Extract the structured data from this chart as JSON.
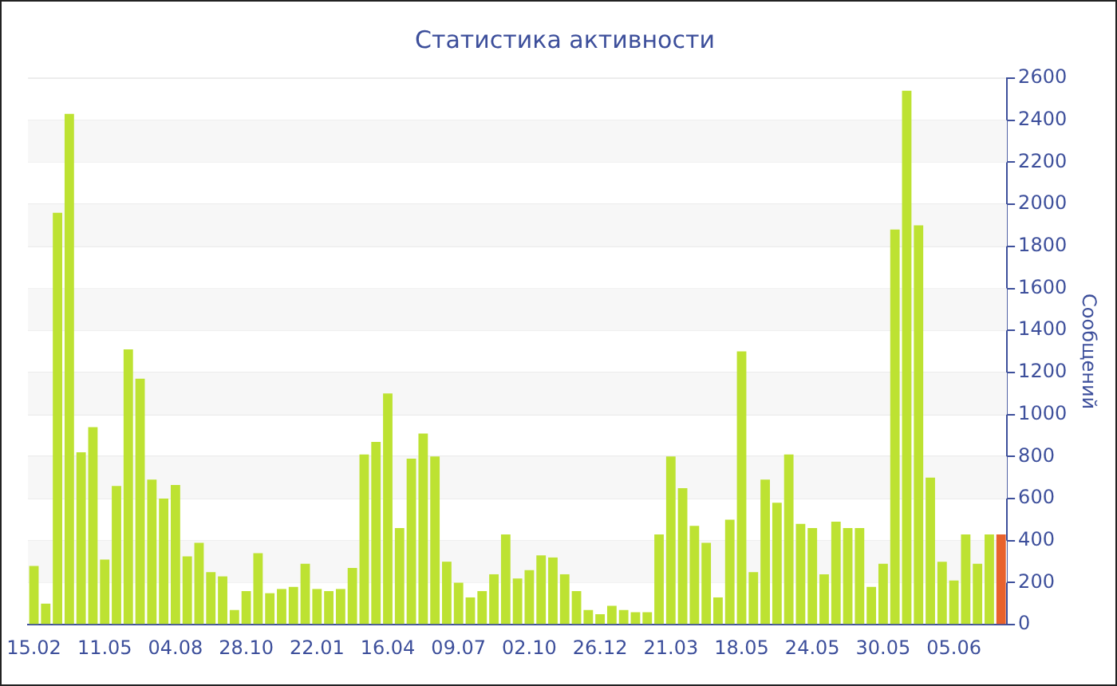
{
  "chart_data": {
    "type": "bar",
    "title": "Статистика активности",
    "ylabel": "Сообщений",
    "categories": [
      "15.02",
      null,
      null,
      null,
      null,
      null,
      "11.05",
      null,
      null,
      null,
      null,
      null,
      "04.08",
      null,
      null,
      null,
      null,
      null,
      "28.10",
      null,
      null,
      null,
      null,
      null,
      "22.01",
      null,
      null,
      null,
      null,
      null,
      "16.04",
      null,
      null,
      null,
      null,
      null,
      "09.07",
      null,
      null,
      null,
      null,
      null,
      "02.10",
      null,
      null,
      null,
      null,
      null,
      "26.12",
      null,
      null,
      null,
      null,
      null,
      "21.03",
      null,
      null,
      null,
      null,
      null,
      "18.05",
      null,
      null,
      null,
      null,
      null,
      "24.05",
      null,
      null,
      null,
      null,
      null,
      "30.05",
      null,
      null,
      null,
      null,
      null,
      "05.06",
      null,
      null,
      null,
      null
    ],
    "values": [
      280,
      100,
      1960,
      2430,
      820,
      940,
      310,
      660,
      1310,
      1170,
      690,
      600,
      665,
      325,
      390,
      250,
      230,
      70,
      160,
      340,
      150,
      170,
      180,
      290,
      170,
      160,
      170,
      270,
      810,
      870,
      1100,
      460,
      790,
      910,
      800,
      300,
      200,
      130,
      160,
      240,
      430,
      220,
      260,
      330,
      320,
      240,
      160,
      70,
      50,
      90,
      70,
      60,
      60,
      430,
      800,
      650,
      470,
      390,
      130,
      500,
      1300,
      250,
      690,
      580,
      810,
      480,
      460,
      240,
      490,
      460,
      460,
      180,
      290,
      1880,
      2540,
      1900,
      700,
      300,
      210,
      430,
      290,
      430,
      430
    ],
    "colors": [
      "#bde232",
      "#bde232",
      "#bde232",
      "#bde232",
      "#bde232",
      "#bde232",
      "#bde232",
      "#bde232",
      "#bde232",
      "#bde232",
      "#bde232",
      "#bde232",
      "#bde232",
      "#bde232",
      "#bde232",
      "#bde232",
      "#bde232",
      "#bde232",
      "#bde232",
      "#bde232",
      "#bde232",
      "#bde232",
      "#bde232",
      "#bde232",
      "#bde232",
      "#bde232",
      "#bde232",
      "#bde232",
      "#bde232",
      "#bde232",
      "#bde232",
      "#bde232",
      "#bde232",
      "#bde232",
      "#bde232",
      "#bde232",
      "#bde232",
      "#bde232",
      "#bde232",
      "#bde232",
      "#bde232",
      "#bde232",
      "#bde232",
      "#bde232",
      "#bde232",
      "#bde232",
      "#bde232",
      "#bde232",
      "#bde232",
      "#bde232",
      "#bde232",
      "#bde232",
      "#bde232",
      "#bde232",
      "#bde232",
      "#bde232",
      "#bde232",
      "#bde232",
      "#bde232",
      "#bde232",
      "#bde232",
      "#bde232",
      "#bde232",
      "#bde232",
      "#bde232",
      "#bde232",
      "#bde232",
      "#bde232",
      "#bde232",
      "#bde232",
      "#bde232",
      "#bde232",
      "#bde232",
      "#bde232",
      "#bde232",
      "#bde232",
      "#bde232",
      "#bde232",
      "#bde232",
      "#bde232",
      "#bde232",
      "#bde232",
      "#e8622c"
    ],
    "ylim": [
      0,
      2600
    ],
    "yticks": [
      0,
      200,
      400,
      600,
      800,
      1000,
      1200,
      1400,
      1600,
      1800,
      2000,
      2200,
      2400,
      2600
    ],
    "grid": "y",
    "legend": false
  }
}
